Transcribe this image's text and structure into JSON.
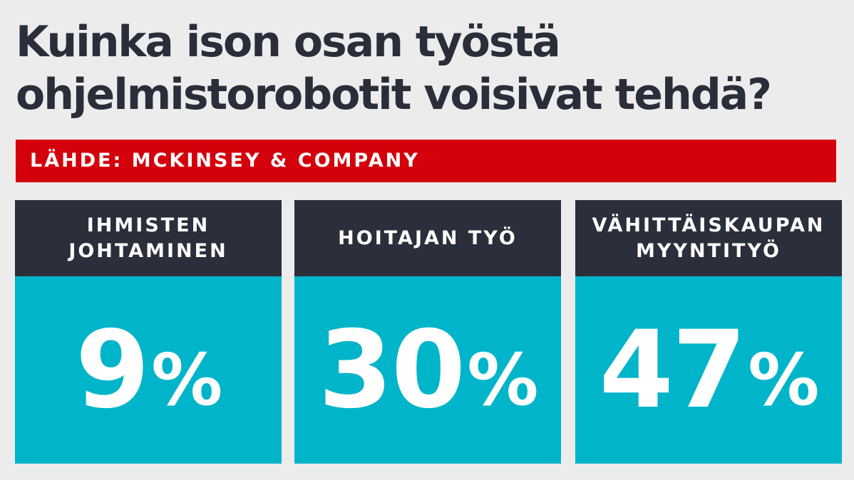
{
  "title": {
    "line1": "Kuinka ison osan työstä",
    "line2": "ohjelmistorobotit voisivat tehdä?"
  },
  "source": "LÄHDE: MCKINSEY & COMPANY",
  "colors": {
    "background": "#ececec",
    "title_text": "#2a2e3a",
    "source_bar": "#d4000b",
    "card_header": "#2b2e3b",
    "card_value": "#00b5c9"
  },
  "cards": [
    {
      "label_line1": "IHMISTEN",
      "label_line2": "JOHTAMINEN",
      "value": "9",
      "unit": "%"
    },
    {
      "label_line1": "HOITAJAN TYÖ",
      "label_line2": "",
      "value": "30",
      "unit": "%"
    },
    {
      "label_line1": "VÄHITTÄISKAUPAN",
      "label_line2": "MYYNTITYÖ",
      "value": "47",
      "unit": "%"
    }
  ]
}
